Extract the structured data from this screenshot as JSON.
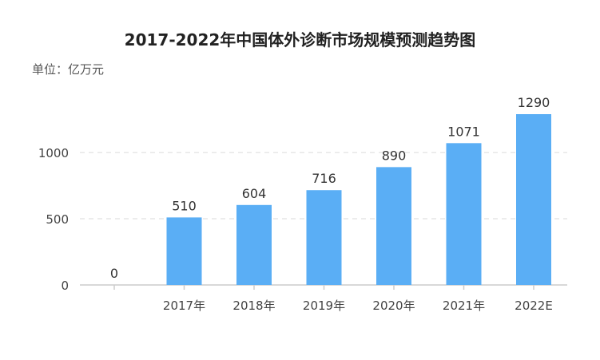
{
  "chart_data": {
    "type": "bar",
    "title": "2017-2022年中国体外诊断市场规模预测趋势图",
    "unit_label": "单位：亿万元",
    "categories": [
      "",
      "2017年",
      "2018年",
      "2019年",
      "2020年",
      "2021年",
      "2022E"
    ],
    "values": [
      0,
      510,
      604,
      716,
      890,
      1071,
      1290
    ],
    "data_labels": [
      "0",
      "510",
      "604",
      "716",
      "890",
      "1071",
      "1290"
    ],
    "y_ticks": [
      0,
      500,
      1000
    ],
    "y_tick_labels": [
      "0",
      "500",
      "1000"
    ],
    "ylim": [
      0,
      1290
    ],
    "grid": true,
    "bar_color": "#5aaef5",
    "legend": "none"
  }
}
